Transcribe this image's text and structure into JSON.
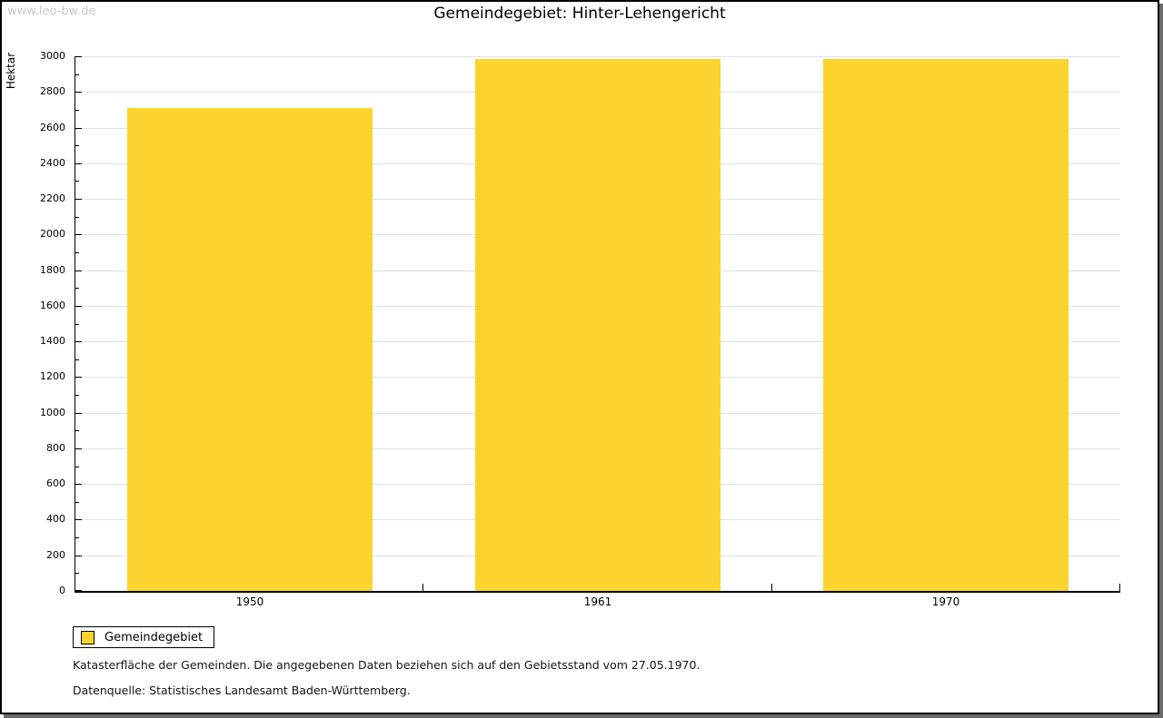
{
  "watermark": "www.leo-bw.de",
  "title": "Gemeindegebiet: Hinter-Lehengericht",
  "chart_data": {
    "type": "bar",
    "title": "Gemeindegebiet: Hinter-Lehengericht",
    "categories": [
      "1950",
      "1961",
      "1970"
    ],
    "series": [
      {
        "name": "Gemeindegebiet",
        "values": [
          2710,
          2985,
          2985
        ]
      }
    ],
    "xlabel": "",
    "ylabel": "Hektar",
    "ylim": [
      0,
      3000
    ],
    "ytick_step": 200,
    "minor_tick_step": 100,
    "grid": true,
    "legend_position": "bottom-left",
    "bar_color": "#fcd42d",
    "gridline_color": "#e2e2e2"
  },
  "legend": {
    "items": [
      {
        "label": "Gemeindegebiet",
        "color": "#fcd42d"
      }
    ]
  },
  "footnotes": [
    "Katasterfläche der Gemeinden. Die angegebenen Daten beziehen sich auf den Gebietsstand vom 27.05.1970.",
    "Datenquelle: Statistisches Landesamt Baden-Württemberg."
  ]
}
